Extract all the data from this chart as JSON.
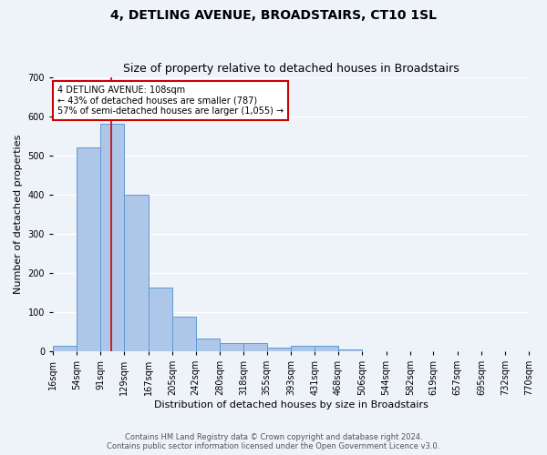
{
  "title": "4, DETLING AVENUE, BROADSTAIRS, CT10 1SL",
  "subtitle": "Size of property relative to detached houses in Broadstairs",
  "xlabel": "Distribution of detached houses by size in Broadstairs",
  "ylabel": "Number of detached properties",
  "footnote1": "Contains HM Land Registry data © Crown copyright and database right 2024.",
  "footnote2": "Contains public sector information licensed under the Open Government Licence v3.0.",
  "bin_labels": [
    "16sqm",
    "54sqm",
    "91sqm",
    "129sqm",
    "167sqm",
    "205sqm",
    "242sqm",
    "280sqm",
    "318sqm",
    "355sqm",
    "393sqm",
    "431sqm",
    "468sqm",
    "506sqm",
    "544sqm",
    "582sqm",
    "619sqm",
    "657sqm",
    "695sqm",
    "732sqm",
    "770sqm"
  ],
  "bar_values": [
    15,
    520,
    580,
    400,
    163,
    88,
    32,
    21,
    21,
    10,
    13,
    13,
    5,
    0,
    0,
    0,
    0,
    0,
    0,
    0
  ],
  "bin_edges": [
    16,
    54,
    91,
    129,
    167,
    205,
    242,
    280,
    318,
    355,
    393,
    431,
    468,
    506,
    544,
    582,
    619,
    657,
    695,
    732,
    770
  ],
  "bar_color": "#aec6e8",
  "bar_edge_color": "#5b9bd5",
  "property_size": 108,
  "property_line_color": "#cc0000",
  "annotation_text_line1": "4 DETLING AVENUE: 108sqm",
  "annotation_text_line2": "← 43% of detached houses are smaller (787)",
  "annotation_text_line3": "57% of semi-detached houses are larger (1,055) →",
  "annotation_box_color": "#cc0000",
  "ylim": [
    0,
    700
  ],
  "yticks": [
    0,
    100,
    200,
    300,
    400,
    500,
    600,
    700
  ],
  "background_color": "#eef2f9",
  "grid_color": "#ffffff",
  "title_fontsize": 10,
  "subtitle_fontsize": 9,
  "axis_label_fontsize": 8,
  "tick_fontsize": 7,
  "annotation_fontsize": 7,
  "footnote_fontsize": 6
}
